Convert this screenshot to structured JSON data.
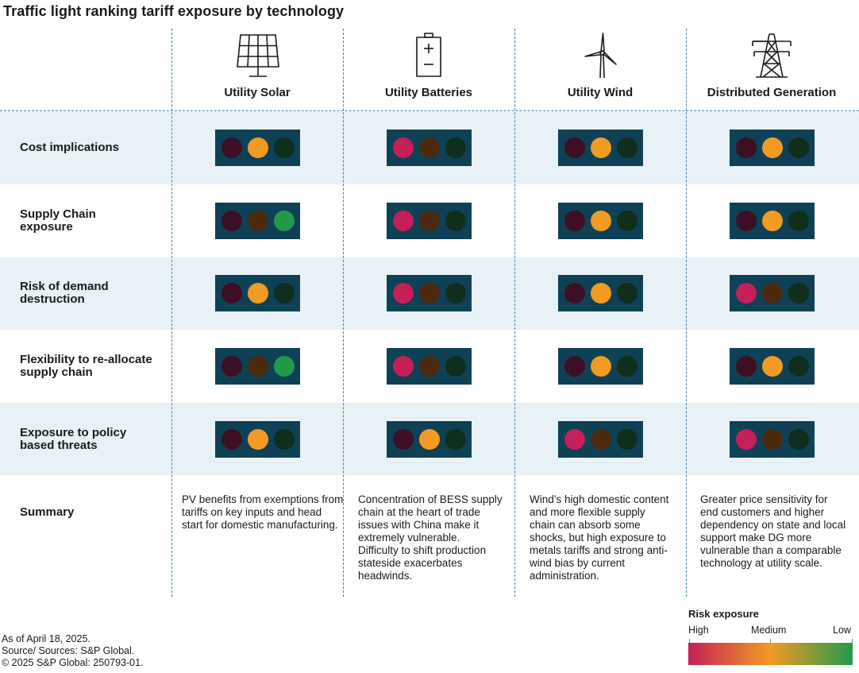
{
  "title": "Traffic light ranking tariff exposure by technology",
  "chart_data": {
    "type": "table",
    "title": "Traffic light ranking tariff exposure by technology",
    "columns": [
      "Utility Solar",
      "Utility Batteries",
      "Utility Wind",
      "Distributed Generation"
    ],
    "column_icons": [
      "solar-panel-icon",
      "battery-icon",
      "wind-turbine-icon",
      "transmission-tower-icon"
    ],
    "rows": [
      "Cost implications",
      "Supply Chain exposure",
      "Risk of demand destruction",
      "Flexibility to re-allocate supply chain",
      "Exposure to policy based threats"
    ],
    "ratings": [
      [
        "Medium",
        "High",
        "Medium",
        "Medium"
      ],
      [
        "Low",
        "High",
        "Medium",
        "Medium"
      ],
      [
        "Medium",
        "High",
        "Medium",
        "High"
      ],
      [
        "Low",
        "High",
        "Medium",
        "Medium"
      ],
      [
        "Medium",
        "Medium",
        "High",
        "High"
      ]
    ],
    "summary_label": "Summary",
    "summaries": [
      "PV benefits from exemptions from tariffs on key inputs and head start for domestic manufacturing.",
      "Concentration of BESS supply chain at the heart of trade issues with China make it extremely vulnerable. Difficulty to shift production stateside exacerbates headwinds.",
      "Wind’s high domestic content and more flexible supply chain can absorb some shocks, but high exposure to metals tariffs and strong anti-wind bias by current administration.",
      "Greater price sensitivity for end customers and higher dependency on state and local support make DG more vulnerable than a comparable technology at utility scale."
    ],
    "legend": {
      "title": "Risk exposure",
      "labels": [
        "High",
        "Medium",
        "Low"
      ]
    }
  },
  "colors": {
    "high_on": "#c41f58",
    "high_off": "#3d0f24",
    "medium_on": "#f29b22",
    "medium_off": "#4c2a10",
    "low_on": "#22994a",
    "low_off": "#0f2e1c",
    "housing": "#0e4156",
    "band": "#e8f1f5",
    "divider": "#3d86a8"
  },
  "footer": {
    "date": "As of April 18, 2025.",
    "source": "Source/ Sources: S&P Global.",
    "copyright": "© 2025 S&P Global: 250793-01."
  }
}
